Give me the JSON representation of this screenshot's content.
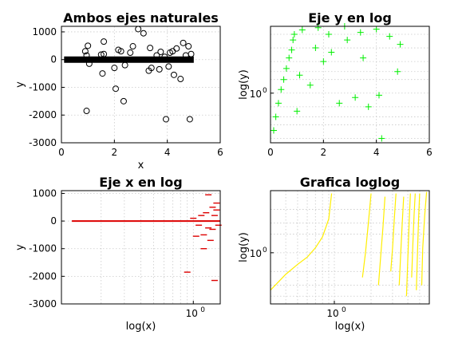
{
  "chart_data": [
    {
      "type": "scatter",
      "title": "Ambos ejes naturales",
      "xlabel": "x",
      "ylabel": "y",
      "xscale": "linear",
      "yscale": "linear",
      "xlim": [
        0,
        6
      ],
      "ylim": [
        -3000,
        1200
      ],
      "xticks": [
        0,
        2,
        4,
        6
      ],
      "xticklabels": [
        "0",
        "2",
        "4",
        "6"
      ],
      "yticks": [
        -3000,
        -2000,
        -1000,
        0,
        1000
      ],
      "yticklabels": [
        "-3000",
        "-2000",
        "-1000",
        "0",
        "1000"
      ],
      "grid": true,
      "marker": "circle",
      "color": "#000000",
      "series": [
        {
          "x": [
            0.95,
            1.55,
            2.05,
            2.35,
            2.9,
            3.1,
            3.95,
            4.25,
            4.85,
            1.0,
            1.6,
            2.15,
            2.7,
            3.35,
            3.75,
            4.1,
            4.6,
            4.8,
            0.9,
            2.0,
            2.4,
            3.7,
            4.05,
            4.5,
            1.05,
            1.6,
            2.6,
            3.3,
            3.6,
            4.2,
            4.7,
            0.95,
            1.5,
            2.25,
            3.4,
            3.9,
            4.35,
            4.9
          ],
          "y": [
            -1850,
            -500,
            -1050,
            -1500,
            1100,
            950,
            -2150,
            -550,
            -2150,
            500,
            650,
            350,
            480,
            420,
            280,
            250,
            600,
            480,
            300,
            -300,
            -200,
            -350,
            -250,
            -700,
            -150,
            200,
            250,
            -400,
            150,
            300,
            150,
            150,
            180,
            300,
            -300,
            100,
            400,
            200
          ]
        }
      ],
      "band": {
        "x_start": 0.1,
        "x_end": 5.0,
        "y": 0
      }
    },
    {
      "type": "scatter",
      "title": "Eje y en log",
      "xlabel": "",
      "ylabel": "log(y)",
      "xscale": "linear",
      "yscale": "log",
      "xlim": [
        0,
        6
      ],
      "ylim": [
        0.08,
        30
      ],
      "xticks": [
        0,
        2,
        4,
        6
      ],
      "xticklabels": [
        "0",
        "2",
        "4",
        "6"
      ],
      "yticks": [
        1
      ],
      "yticklabels": [
        "10",
        "0"
      ],
      "grid": true,
      "marker": "plus",
      "color": "#00ee00",
      "series": [
        {
          "x": [
            0.12,
            0.2,
            0.3,
            0.4,
            0.5,
            0.6,
            0.7,
            0.8,
            0.85,
            0.9,
            1.0,
            1.2,
            1.5,
            1.8,
            2.0,
            2.2,
            2.6,
            2.8,
            3.2,
            3.4,
            3.7,
            4.0,
            4.2,
            4.5,
            4.8,
            4.9,
            1.1,
            1.7,
            2.3,
            2.9,
            3.5,
            4.1
          ],
          "y": [
            0.15,
            0.3,
            0.6,
            1.2,
            2.0,
            3.5,
            6.0,
            9.0,
            15.0,
            20.0,
            0.4,
            25.0,
            1.5,
            28.0,
            5.0,
            20.0,
            0.6,
            30.0,
            0.8,
            22.0,
            0.5,
            26.0,
            0.1,
            18.0,
            3.0,
            12.0,
            2.5,
            10.0,
            8.0,
            15.0,
            6.0,
            0.9
          ]
        }
      ]
    },
    {
      "type": "scatter",
      "title": "Eje x en log",
      "xlabel": "log(x)",
      "ylabel": "y",
      "xscale": "log",
      "yscale": "linear",
      "xlim": [
        0.1,
        1.6
      ],
      "ylim": [
        -3000,
        1100
      ],
      "xticks": [
        1
      ],
      "xticklabels": [
        "10",
        "0"
      ],
      "yticks": [
        -3000,
        -2000,
        -1000,
        0,
        1000
      ],
      "yticklabels": [
        "-3000",
        "-2000",
        "-1000",
        "0",
        "1000"
      ],
      "grid": true,
      "marker": "dash",
      "color": "#dd0000",
      "series": [
        {
          "x": [
            0.9,
            1.05,
            1.2,
            1.3,
            1.4,
            1.45,
            1.5,
            1.55,
            1.35,
            1.25,
            1.15,
            1.0,
            1.4,
            1.3,
            1.5,
            1.2,
            1.45,
            1.1
          ],
          "y": [
            -1850,
            -550,
            -1000,
            950,
            500,
            -2150,
            650,
            -150,
            -700,
            300,
            200,
            100,
            -300,
            -250,
            400,
            -500,
            200,
            -150
          ]
        }
      ],
      "band": {
        "x_start": 0.12,
        "x_end": 1.6,
        "y": 0
      }
    },
    {
      "type": "line",
      "title": "Grafica loglog",
      "xlabel": "log(x)",
      "ylabel": "log(y)",
      "xscale": "log",
      "yscale": "log",
      "xlim": [
        0.3,
        6
      ],
      "ylim": [
        0.15,
        10
      ],
      "xticks": [
        1
      ],
      "xticklabels": [
        "10",
        "0"
      ],
      "yticks": [
        1
      ],
      "yticklabels": [
        "10",
        "0"
      ],
      "grid": true,
      "color": "#ffee00",
      "series": [
        {
          "x": [
            0.3,
            0.4,
            0.5,
            0.6,
            0.7,
            0.8,
            0.9,
            0.95
          ],
          "y": [
            0.25,
            0.45,
            0.65,
            0.85,
            1.2,
            1.8,
            3.5,
            9.0
          ]
        },
        {
          "x": [
            1.7,
            1.8,
            1.9,
            2.0
          ],
          "y": [
            0.4,
            1.0,
            3.0,
            9.0
          ]
        },
        {
          "x": [
            2.3,
            2.4,
            2.5,
            2.6
          ],
          "y": [
            0.3,
            0.9,
            2.5,
            8.0
          ]
        },
        {
          "x": [
            2.9,
            3.0,
            3.1,
            3.2
          ],
          "y": [
            0.5,
            1.2,
            3.5,
            9.0
          ]
        },
        {
          "x": [
            3.4,
            3.5,
            3.6,
            3.7
          ],
          "y": [
            0.3,
            1.0,
            3.0,
            8.0
          ]
        },
        {
          "x": [
            3.9,
            4.0,
            4.1,
            4.2
          ],
          "y": [
            0.2,
            0.8,
            3.0,
            9.0
          ]
        },
        {
          "x": [
            4.3,
            4.4,
            4.5,
            4.6
          ],
          "y": [
            0.4,
            1.4,
            4.0,
            9.0
          ]
        },
        {
          "x": [
            4.7,
            4.8,
            4.9,
            5.0
          ],
          "y": [
            0.25,
            1.0,
            3.5,
            9.0
          ]
        },
        {
          "x": [
            5.2,
            5.3,
            5.5,
            5.7
          ],
          "y": [
            0.3,
            1.2,
            4.0,
            9.5
          ]
        }
      ]
    }
  ]
}
